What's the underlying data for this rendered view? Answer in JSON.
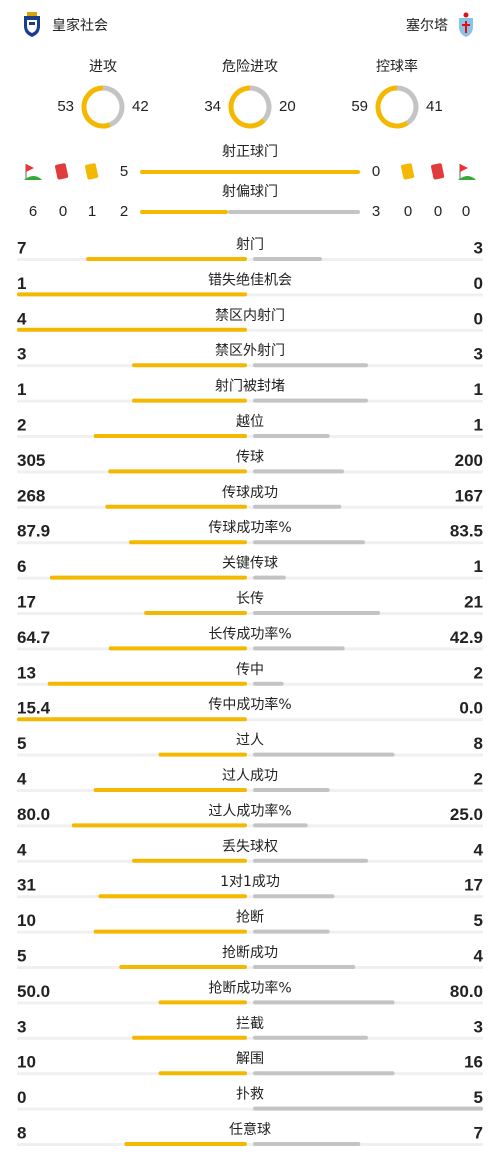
{
  "header": {
    "home": "皇家社会",
    "away": "塞尔塔"
  },
  "summary": [
    {
      "label": "进攻",
      "home": "53",
      "away": "42"
    },
    {
      "label": "危险进攻",
      "home": "34",
      "away": "20"
    },
    {
      "label": "控球率",
      "home": "59",
      "away": "41"
    }
  ],
  "shots": [
    {
      "label": "射正球门",
      "home": "5",
      "away": "0"
    },
    {
      "label": "射偏球门",
      "home": "2",
      "away": "3"
    }
  ],
  "discipline": {
    "home": {
      "corners": "6",
      "red": "0",
      "yellow": "1"
    },
    "away": {
      "yellow": "0",
      "red": "0",
      "corners": "0"
    }
  },
  "stats": [
    {
      "label": "射门",
      "home": "7",
      "away": "3"
    },
    {
      "label": "错失绝佳机会",
      "home": "1",
      "away": "0"
    },
    {
      "label": "禁区内射门",
      "home": "4",
      "away": "0"
    },
    {
      "label": "禁区外射门",
      "home": "3",
      "away": "3"
    },
    {
      "label": "射门被封堵",
      "home": "1",
      "away": "1"
    },
    {
      "label": "越位",
      "home": "2",
      "away": "1"
    },
    {
      "label": "传球",
      "home": "305",
      "away": "200"
    },
    {
      "label": "传球成功",
      "home": "268",
      "away": "167"
    },
    {
      "label": "传球成功率%",
      "home": "87.9",
      "away": "83.5"
    },
    {
      "label": "关键传球",
      "home": "6",
      "away": "1"
    },
    {
      "label": "长传",
      "home": "17",
      "away": "21"
    },
    {
      "label": "长传成功率%",
      "home": "64.7",
      "away": "42.9"
    },
    {
      "label": "传中",
      "home": "13",
      "away": "2"
    },
    {
      "label": "传中成功率%",
      "home": "15.4",
      "away": "0.0"
    },
    {
      "label": "过人",
      "home": "5",
      "away": "8"
    },
    {
      "label": "过人成功",
      "home": "4",
      "away": "2"
    },
    {
      "label": "过人成功率%",
      "home": "80.0",
      "away": "25.0"
    },
    {
      "label": "丢失球权",
      "home": "4",
      "away": "4"
    },
    {
      "label": "1对1成功",
      "home": "31",
      "away": "17"
    },
    {
      "label": "抢断",
      "home": "10",
      "away": "5"
    },
    {
      "label": "抢断成功",
      "home": "5",
      "away": "4"
    },
    {
      "label": "抢断成功率%",
      "home": "50.0",
      "away": "80.0"
    },
    {
      "label": "拦截",
      "home": "3",
      "away": "3"
    },
    {
      "label": "解围",
      "home": "10",
      "away": "16"
    },
    {
      "label": "扑救",
      "home": "0",
      "away": "5"
    },
    {
      "label": "任意球",
      "home": "8",
      "away": "7"
    }
  ]
}
